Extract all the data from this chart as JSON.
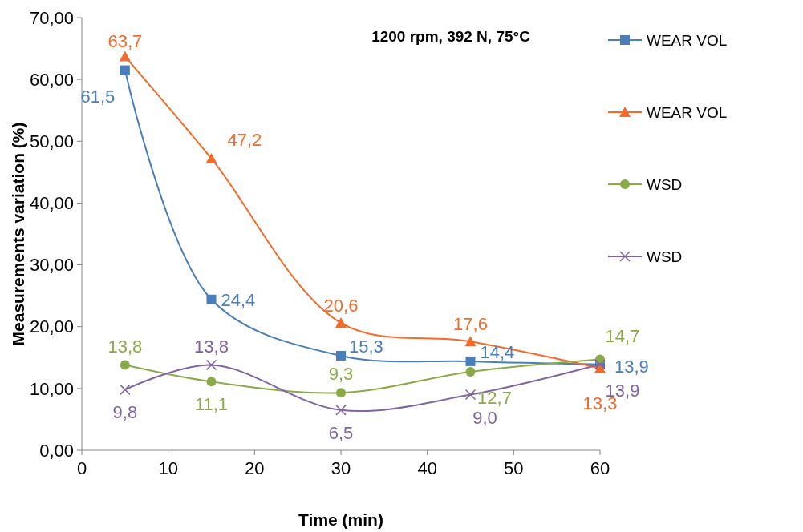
{
  "chart_data": {
    "type": "line",
    "title": "1200 rpm,  392 N, 75°C",
    "xlabel": "Time (min)",
    "ylabel": "Measurements variation (%)",
    "x": [
      5,
      15,
      30,
      45,
      60
    ],
    "series": [
      {
        "name": "WEAR VOL",
        "color": "#4a7ebb",
        "marker": "square",
        "values": [
          61.5,
          24.4,
          15.3,
          14.4,
          13.9
        ],
        "value_labels": [
          "61,5",
          "24,4",
          "15,3",
          "14,4",
          "13,9"
        ]
      },
      {
        "name": "WEAR VOL",
        "color": "#f26b2a",
        "marker": "triangle",
        "values": [
          63.7,
          47.2,
          20.6,
          17.6,
          13.3
        ],
        "value_labels": [
          "63,7",
          "47,2",
          "20,6",
          "17,6",
          "13,3"
        ]
      },
      {
        "name": "WSD",
        "color": "#8aaa4a",
        "marker": "circle",
        "values": [
          13.8,
          11.1,
          9.3,
          12.7,
          14.7
        ],
        "value_labels": [
          "13,8",
          "11,1",
          "9,3",
          "12,7",
          "14,7"
        ]
      },
      {
        "name": "WSD",
        "color": "#8064a2",
        "marker": "cross",
        "values": [
          9.8,
          13.8,
          6.5,
          9.0,
          13.9
        ],
        "value_labels": [
          "9,8",
          "13,8",
          "6,5",
          "9,0",
          "13,9"
        ]
      }
    ],
    "xlim": [
      0,
      60
    ],
    "xticks": [
      0,
      10,
      20,
      30,
      40,
      50,
      60
    ],
    "ylim": [
      0,
      70
    ],
    "yticks": [
      {
        "value": 0,
        "label": "0,00"
      },
      {
        "value": 10,
        "label": "10,00"
      },
      {
        "value": 20,
        "label": "20,00"
      },
      {
        "value": 30,
        "label": "30,00"
      },
      {
        "value": 40,
        "label": "40,00"
      },
      {
        "value": 50,
        "label": "50,00"
      },
      {
        "value": 60,
        "label": "60,00"
      },
      {
        "value": 70,
        "label": "70,00"
      }
    ],
    "grid": false,
    "legend": "right",
    "line_style": "solid"
  }
}
